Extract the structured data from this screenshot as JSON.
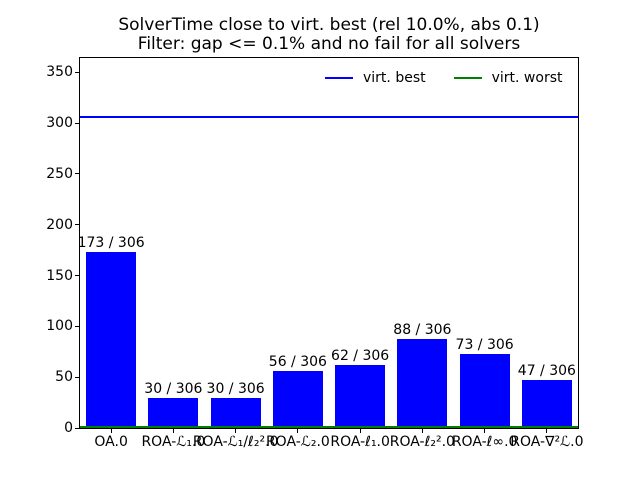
{
  "title": {
    "line1": "SolverTime close to virt. best (rel 10.0%, abs 0.1)",
    "line2": "Filter: gap <= 0.1% and no fail for all solvers"
  },
  "legend": {
    "items": [
      {
        "label": "virt. best",
        "color": "#0000ff"
      },
      {
        "label": "virt. worst",
        "color": "#008000"
      }
    ]
  },
  "chart_data": {
    "type": "bar",
    "title": "SolverTime close to virt. best (rel 10.0%, abs 0.1)",
    "subtitle": "Filter: gap <= 0.1% and no fail for all solvers",
    "categories": [
      "OA.0",
      "ROA-ℒ₁.0",
      "ROA-ℒ₁/ℓ₂².0",
      "ROA-ℒ₂.0",
      "ROA-ℓ₁.0",
      "ROA-ℓ₂².0",
      "ROA-ℓ∞.0",
      "ROA-∇²ℒ.0"
    ],
    "values": [
      173,
      30,
      30,
      56,
      62,
      88,
      73,
      47
    ],
    "bar_labels": [
      "173 / 306",
      "30 / 306",
      "30 / 306",
      "56 / 306",
      "62 / 306",
      "88 / 306",
      "73 / 306",
      "47 / 306"
    ],
    "total_instances": 306,
    "bar_color": "#0000ff",
    "hlines": [
      {
        "name": "virt. best",
        "value": 306,
        "color": "#0000ff"
      },
      {
        "name": "virt. worst",
        "value": 1,
        "color": "#008000"
      }
    ],
    "yticks": [
      0,
      50,
      100,
      150,
      200,
      250,
      300,
      350
    ],
    "ylim": [
      0,
      364
    ],
    "xlabel": "",
    "ylabel": "",
    "grid": false,
    "legend_position": "upper right inside plot, 2 columns, frameless"
  }
}
